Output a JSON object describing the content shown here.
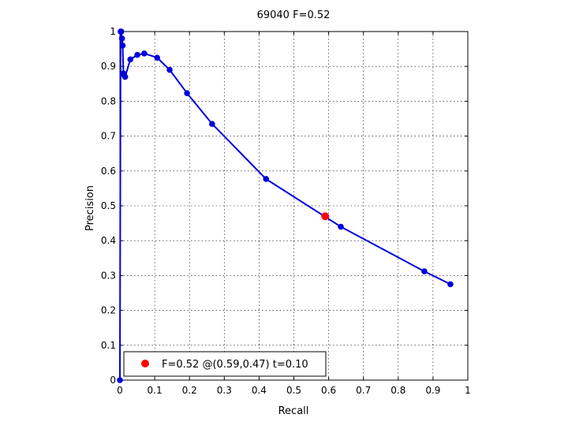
{
  "chart_data": {
    "type": "line",
    "title": "69040 F=0.52",
    "xlabel": "Recall",
    "ylabel": "Precision",
    "xlim": [
      0,
      1
    ],
    "ylim": [
      0,
      1
    ],
    "xticks": [
      0,
      0.1,
      0.2,
      0.3,
      0.4,
      0.5,
      0.6,
      0.7,
      0.8,
      0.9,
      1
    ],
    "yticks": [
      0,
      0.1,
      0.2,
      0.3,
      0.4,
      0.5,
      0.6,
      0.7,
      0.8,
      0.9,
      1
    ],
    "xtick_labels": [
      "0",
      "0.1",
      "0.2",
      "0.3",
      "0.4",
      "0.5",
      "0.6",
      "0.7",
      "0.8",
      "0.9",
      "1"
    ],
    "ytick_labels": [
      "0",
      "0.1",
      "0.2",
      "0.3",
      "0.4",
      "0.5",
      "0.6",
      "0.7",
      "0.8",
      "0.9",
      "1"
    ],
    "grid": true,
    "series": [
      {
        "color": "#0000dd",
        "x": [
          0.95,
          0.875,
          0.635,
          0.42,
          0.265,
          0.193,
          0.143,
          0.107,
          0.07,
          0.05,
          0.03,
          0.015,
          0.012,
          0.01,
          0.008,
          0.006,
          0.004,
          0.002,
          0.0
        ],
        "y": [
          0.275,
          0.312,
          0.44,
          0.577,
          0.735,
          0.823,
          0.89,
          0.925,
          0.937,
          0.933,
          0.92,
          0.87,
          0.875,
          0.88,
          0.96,
          0.98,
          1.0,
          1.0,
          0.0
        ]
      }
    ],
    "highlight": {
      "x": 0.59,
      "y": 0.47,
      "color": "#ff0000"
    },
    "legend": {
      "text": "F=0.52 @(0.59,0.47) t=0.10",
      "location": "bottom-left"
    }
  }
}
